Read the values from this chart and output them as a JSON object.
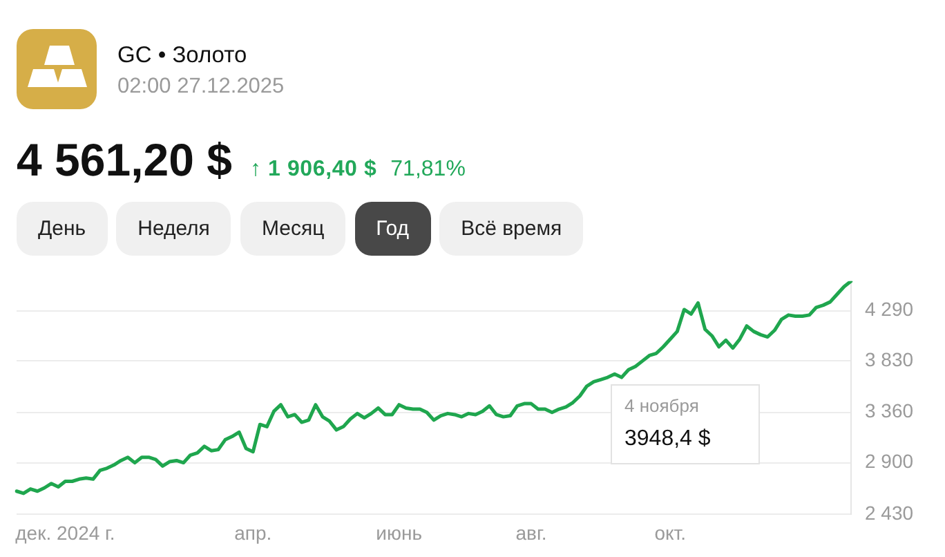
{
  "chart_data": {
    "type": "line",
    "title": "GC • Золото",
    "subtitle": "02:00 27.12.2025",
    "annotations": [
      "4 561,20 $",
      "↑ 1 906,40 $",
      "71,81%",
      "День",
      "Неделя",
      "Месяц",
      "Год",
      "Всё время",
      "4 ноября",
      "3948,4 $"
    ],
    "categories": [
      null,
      null,
      null,
      null,
      null,
      null,
      null,
      "дек. 2024 г.",
      null,
      null,
      null,
      null,
      null,
      null,
      null,
      null,
      null,
      null,
      null,
      null,
      null,
      null,
      null,
      null,
      null,
      null,
      null,
      null,
      null,
      null,
      null,
      null,
      null,
      null,
      "апр.",
      null,
      null,
      null,
      null,
      null,
      null,
      null,
      null,
      null,
      null,
      null,
      null,
      null,
      null,
      null,
      null,
      null,
      null,
      null,
      null,
      "июнь",
      null,
      null,
      null,
      null,
      null,
      null,
      null,
      null,
      null,
      null,
      null,
      null,
      null,
      null,
      null,
      null,
      null,
      null,
      "авг.",
      null,
      null,
      null,
      null,
      null,
      null,
      null,
      null,
      null,
      null,
      null,
      null,
      null,
      null,
      null,
      null,
      null,
      null,
      null,
      "окт.",
      null,
      null,
      null,
      null,
      null,
      null,
      null,
      null,
      null,
      null,
      null,
      null,
      null,
      null,
      null,
      null,
      null,
      null,
      null,
      null,
      null,
      null,
      null,
      null,
      null,
      null
    ],
    "values": [
      2640,
      2620,
      2660,
      2640,
      2670,
      2710,
      2680,
      2730,
      2730,
      2750,
      2760,
      2750,
      2830,
      2850,
      2880,
      2920,
      2950,
      2900,
      2950,
      2950,
      2930,
      2870,
      2910,
      2920,
      2900,
      2970,
      2990,
      3050,
      3010,
      3020,
      3110,
      3140,
      3180,
      3030,
      3000,
      3250,
      3230,
      3370,
      3430,
      3320,
      3340,
      3270,
      3290,
      3430,
      3320,
      3280,
      3200,
      3230,
      3300,
      3350,
      3310,
      3350,
      3400,
      3340,
      3340,
      3430,
      3400,
      3390,
      3390,
      3360,
      3290,
      3330,
      3350,
      3340,
      3320,
      3350,
      3340,
      3370,
      3420,
      3340,
      3320,
      3330,
      3420,
      3440,
      3440,
      3390,
      3390,
      3360,
      3390,
      3410,
      3450,
      3510,
      3600,
      3640,
      3660,
      3680,
      3710,
      3680,
      3750,
      3780,
      3830,
      3880,
      3900,
      3960,
      4030,
      4100,
      4300,
      4260,
      4360,
      4120,
      4060,
      3960,
      4020,
      3948.4,
      4030,
      4150,
      4100,
      4070,
      4050,
      4110,
      4210,
      4250,
      4240,
      4240,
      4250,
      4320,
      4340,
      4370,
      4440,
      4510,
      4560
    ],
    "color": "#1fa64e",
    "ylim": [
      2430,
      4560
    ],
    "yticks": [
      {
        "value": 2430,
        "label": "2 430"
      },
      {
        "value": 2900,
        "label": "2 900"
      },
      {
        "value": 3360,
        "label": "3 360"
      },
      {
        "value": 3830,
        "label": "3 830"
      },
      {
        "value": 4290,
        "label": "4 290"
      }
    ],
    "grid": "y"
  }
}
